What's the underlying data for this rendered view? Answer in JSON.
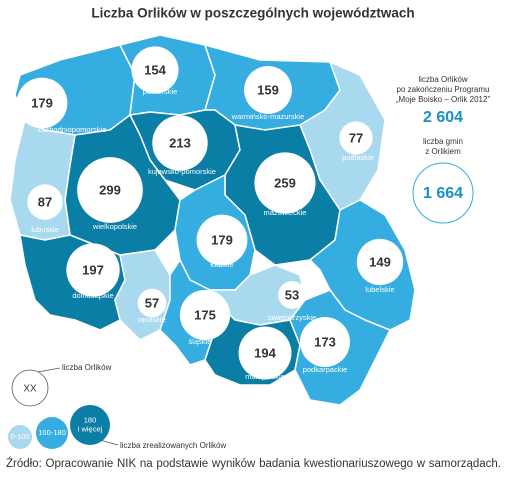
{
  "title": "Liczba Orlików w poszczególnych województwach",
  "regions": [
    {
      "name": "zachodniopomorskie",
      "value": 179,
      "color": "#35ade0"
    },
    {
      "name": "pomorskie",
      "value": 154,
      "color": "#35ade0"
    },
    {
      "name": "warmińsko-mazurskie",
      "value": 159,
      "color": "#35ade0"
    },
    {
      "name": "podlaskie",
      "value": 77,
      "color": "#a9d9ef"
    },
    {
      "name": "kujawsko-pomorskie",
      "value": 213,
      "color": "#0b7ea6"
    },
    {
      "name": "wielkopolskie",
      "value": 299,
      "color": "#0b7ea6"
    },
    {
      "name": "lubuskie",
      "value": 87,
      "color": "#a9d9ef"
    },
    {
      "name": "mazowieckie",
      "value": 259,
      "color": "#0b7ea6"
    },
    {
      "name": "łódzkie",
      "value": 179,
      "color": "#35ade0"
    },
    {
      "name": "lubelskie",
      "value": 149,
      "color": "#35ade0"
    },
    {
      "name": "dolnośląskie",
      "value": 197,
      "color": "#0b7ea6"
    },
    {
      "name": "opolskie",
      "value": 57,
      "color": "#a9d9ef"
    },
    {
      "name": "śląskie",
      "value": 175,
      "color": "#35ade0"
    },
    {
      "name": "świętokrzyskie",
      "value": 53,
      "color": "#a9d9ef"
    },
    {
      "name": "małopolskie",
      "value": 194,
      "color": "#0b7ea6"
    },
    {
      "name": "podkarpackie",
      "value": 173,
      "color": "#35ade0"
    }
  ],
  "summary": {
    "total_label": [
      "liczba Orlików",
      "po zakończeniu Programu",
      "„Moje Boisko – Orlik 2012”"
    ],
    "total_value": "2 604",
    "gminy_label": [
      "liczba gmin",
      "z Orlikiem"
    ],
    "gminy_value": "1 664"
  },
  "legend": {
    "size_label": "liczba Orlików",
    "size_symbol": "XX",
    "classes": [
      {
        "label": [
          "0-100"
        ],
        "color": "#a9d9ef"
      },
      {
        "label": [
          "100-180"
        ],
        "color": "#35ade0"
      },
      {
        "label": [
          "180",
          "i więcej"
        ],
        "color": "#0b7ea6"
      }
    ],
    "color_label": "liczba zrealizowanych Orlików"
  },
  "source": "Źródło: Opracowanie NIK na podstawie wyników badania kwestionariuszowego w samorządach."
}
